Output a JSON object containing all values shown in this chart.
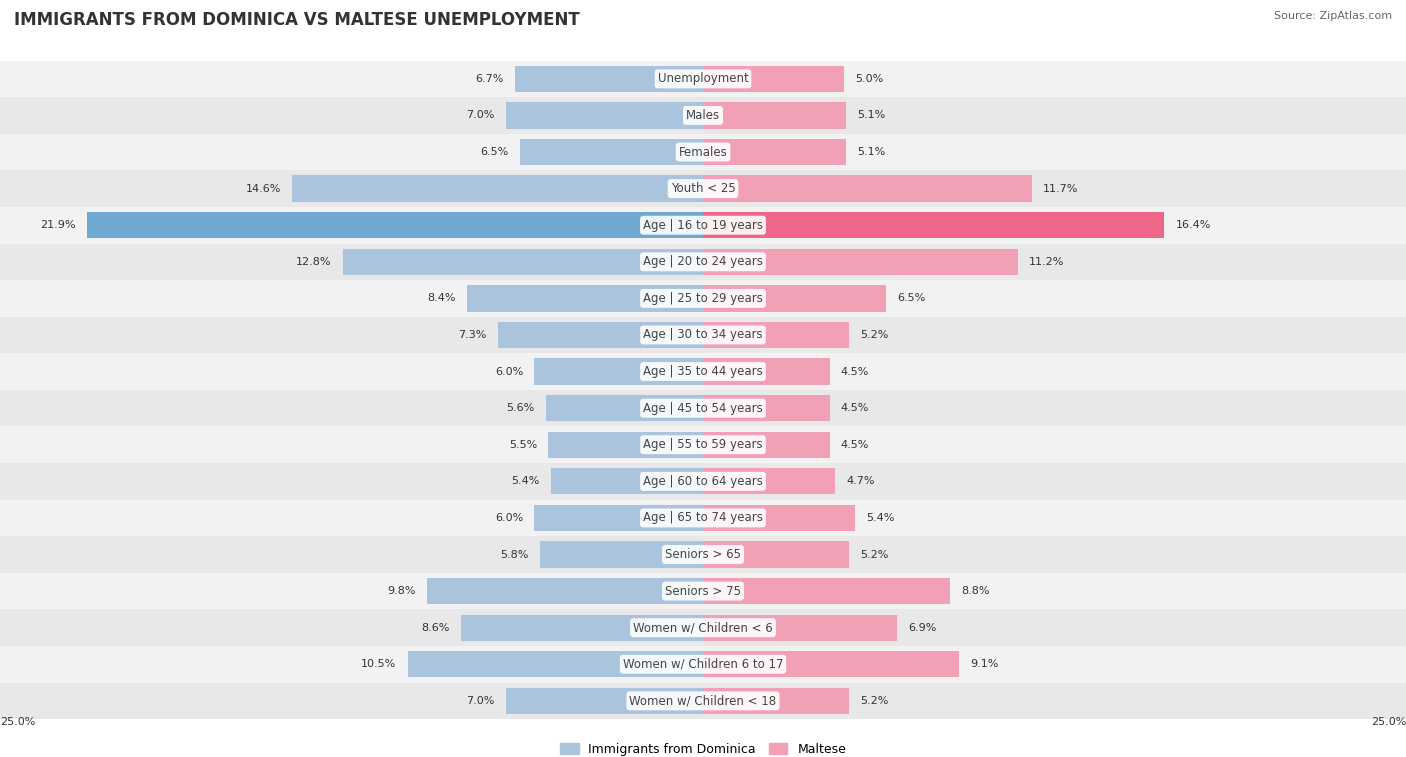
{
  "title": "IMMIGRANTS FROM DOMINICA VS MALTESE UNEMPLOYMENT",
  "source": "Source: ZipAtlas.com",
  "categories": [
    "Unemployment",
    "Males",
    "Females",
    "Youth < 25",
    "Age | 16 to 19 years",
    "Age | 20 to 24 years",
    "Age | 25 to 29 years",
    "Age | 30 to 34 years",
    "Age | 35 to 44 years",
    "Age | 45 to 54 years",
    "Age | 55 to 59 years",
    "Age | 60 to 64 years",
    "Age | 65 to 74 years",
    "Seniors > 65",
    "Seniors > 75",
    "Women w/ Children < 6",
    "Women w/ Children 6 to 17",
    "Women w/ Children < 18"
  ],
  "left_values": [
    6.7,
    7.0,
    6.5,
    14.6,
    21.9,
    12.8,
    8.4,
    7.3,
    6.0,
    5.6,
    5.5,
    5.4,
    6.0,
    5.8,
    9.8,
    8.6,
    10.5,
    7.0
  ],
  "right_values": [
    5.0,
    5.1,
    5.1,
    11.7,
    16.4,
    11.2,
    6.5,
    5.2,
    4.5,
    4.5,
    4.5,
    4.7,
    5.4,
    5.2,
    8.8,
    6.9,
    9.1,
    5.2
  ],
  "left_color": "#aac4de",
  "right_color": "#f2a0b5",
  "highlight_left_color": "#6fa8d0",
  "highlight_right_color": "#ee6688",
  "row_colors": [
    "#f2f2f2",
    "#e8e8e8"
  ],
  "axis_max": 25.0,
  "legend_left": "Immigrants from Dominica",
  "legend_right": "Maltese",
  "title_fontsize": 12,
  "label_fontsize": 8.5,
  "value_fontsize": 8.0,
  "source_fontsize": 8.0
}
